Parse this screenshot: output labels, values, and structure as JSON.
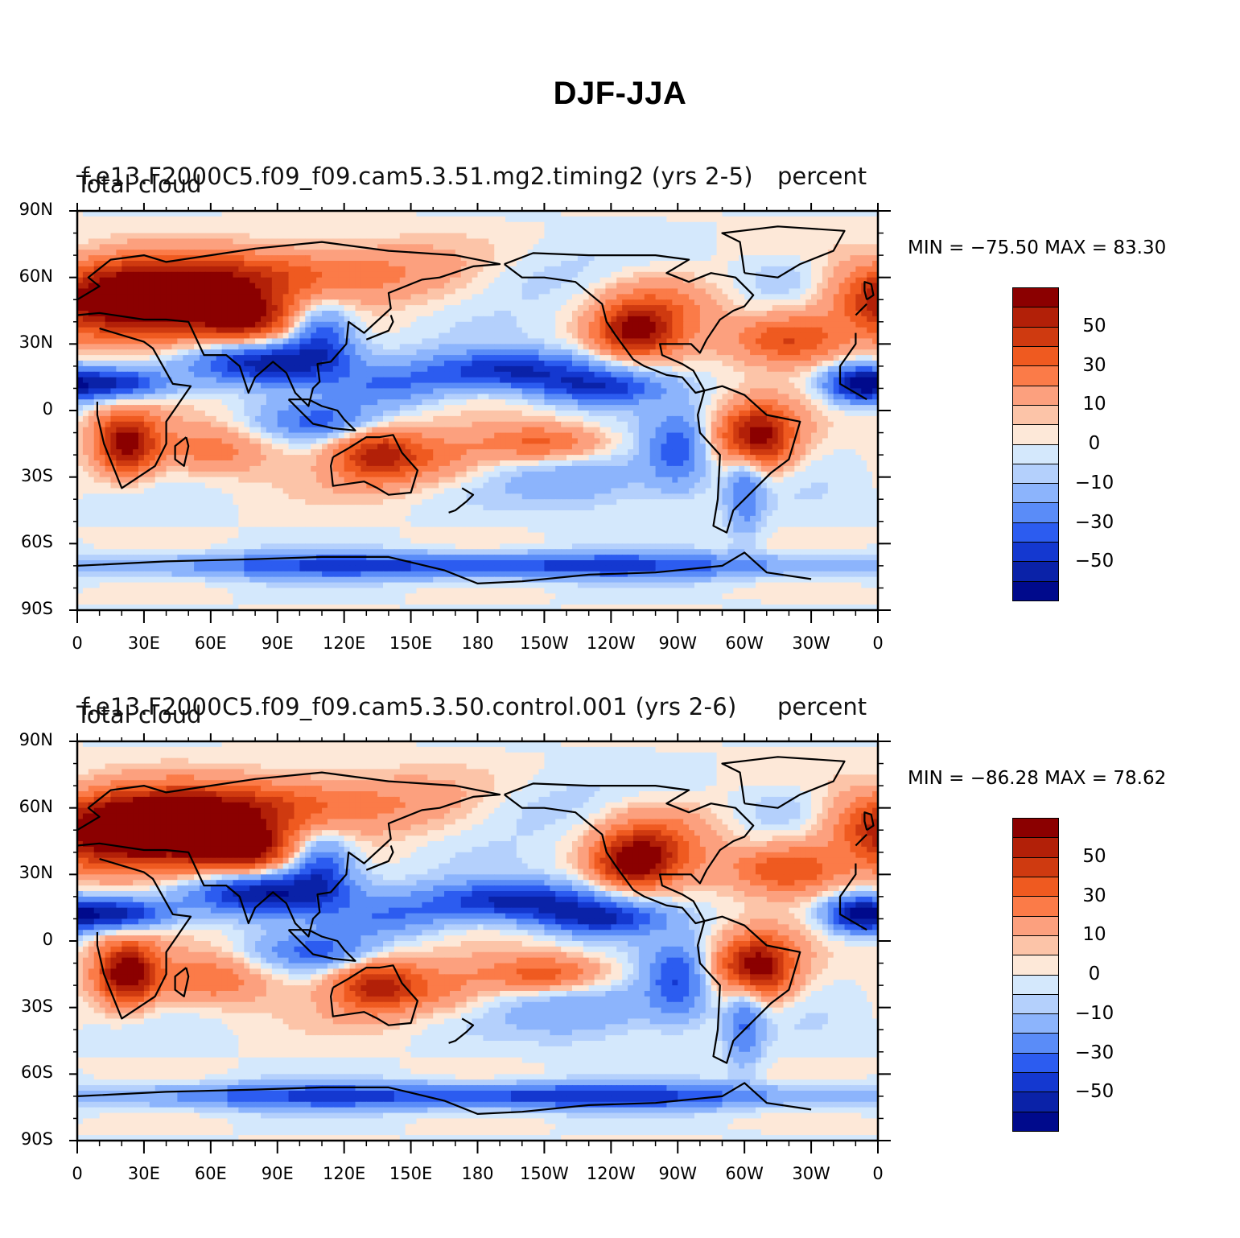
{
  "title": "DJF-JJA",
  "panels": [
    {
      "run": "f.e13.F2000C5.f09_f09.cam5.3.51.mg2.timing2  (yrs 2-5)",
      "variable": "Total cloud",
      "units": "percent",
      "min_label": "MIN = −75.50  MAX =   83.30"
    },
    {
      "run": "f.e13.F2000C5.f09_f09.cam5.3.50.control.001  (yrs 2-6)",
      "variable": "Total cloud",
      "units": "percent",
      "min_label": "MIN = −86.28  MAX =   78.62"
    }
  ],
  "lat_ticks": [
    "90N",
    "60N",
    "30N",
    "0",
    "30S",
    "60S",
    "90S"
  ],
  "lon_ticks": [
    "0",
    "30E",
    "60E",
    "90E",
    "120E",
    "150E",
    "180",
    "150W",
    "120W",
    "90W",
    "60W",
    "30W",
    "0"
  ],
  "colorbar": {
    "colors": [
      "#8b0000",
      "#b22008",
      "#cf3a10",
      "#ef5a20",
      "#fb7b48",
      "#fca07e",
      "#fcc4a8",
      "#fde8d8",
      "#d4e8fc",
      "#b4d0fc",
      "#8cb4fc",
      "#5a8cf8",
      "#2c5cf0",
      "#1438d0",
      "#0a22a8",
      "#000a8c"
    ],
    "labels": [
      "50",
      "30",
      "10",
      "0",
      "−10",
      "−30",
      "−50"
    ]
  }
}
